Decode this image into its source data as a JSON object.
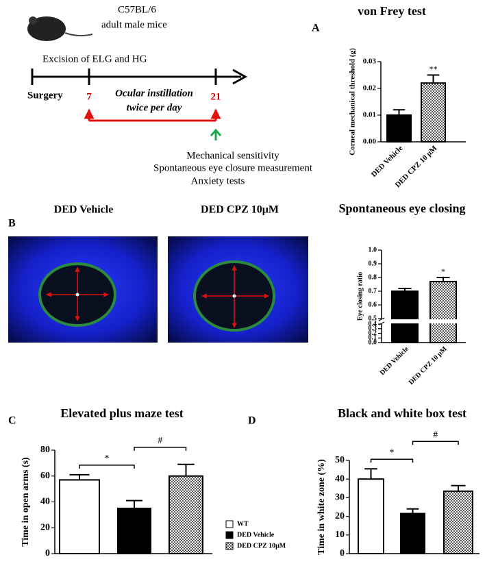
{
  "timeline": {
    "strain": "C57BL/6",
    "subject": "adult male mice",
    "procedure": "Excision of ELG and HG",
    "start": "Surgery",
    "days": [
      "7",
      "21"
    ],
    "treatment": [
      "Ocular instillation",
      "twice per day"
    ],
    "tests": [
      "Mechanical sensitivity",
      "Spontaneous eye closure measurement",
      "Anxiety tests"
    ]
  },
  "photos": {
    "panel": "B",
    "titles": [
      "DED Vehicle",
      "DED CPZ 10μM"
    ]
  },
  "chart_data": [
    {
      "type": "bar",
      "panel": "A",
      "title": "von Frey test",
      "y_label": "Corneal mechanical threshold (g)",
      "categories": [
        "DED Vehicle",
        "DED CPZ 10 μM"
      ],
      "values": [
        0.01,
        0.022
      ],
      "errors": [
        0.002,
        0.003
      ],
      "colors": [
        "#000000",
        "checker"
      ],
      "ylim": [
        0,
        0.03
      ],
      "yticks": [
        {
          "value": 0,
          "label": "0.00"
        },
        0.01,
        0.02,
        0.03
      ],
      "annotations": [
        {
          "bar": 1,
          "text": "**"
        }
      ]
    },
    {
      "type": "bar",
      "title": "Spontaneous eye closing",
      "y_label": "Eye closing ratio",
      "categories": [
        "DED Vehicle",
        "DED CPZ 10 μM"
      ],
      "values": [
        0.7,
        0.77
      ],
      "errors": [
        0.02,
        0.03
      ],
      "colors": [
        "#000000",
        "checker"
      ],
      "ylim": [
        0,
        1
      ],
      "axis_break": [
        0.4,
        0.5
      ],
      "yticks": [
        {
          "value": 0,
          "label": "0.0"
        },
        0.1,
        0.2,
        0.3,
        0.4,
        0.5,
        0.6,
        0.7,
        0.8,
        0.9,
        {
          "value": 1,
          "label": "1.0"
        }
      ],
      "annotations": [
        {
          "bar": 1,
          "text": "*"
        }
      ]
    },
    {
      "type": "bar",
      "panel": "C",
      "title": "Elevated plus maze test",
      "y_label": "Time in open arms (s)",
      "series": [
        {
          "name": "WT",
          "color": "#ffffff",
          "values": [
            57
          ],
          "errors": [
            4
          ]
        },
        {
          "name": "DED Vehicle",
          "color": "#000000",
          "values": [
            35
          ],
          "errors": [
            6
          ]
        },
        {
          "name": "DED CPZ 10μM",
          "color": "checker",
          "values": [
            60
          ],
          "errors": [
            9
          ]
        }
      ],
      "ylim": [
        0,
        80
      ],
      "yticks": [
        0,
        20,
        40,
        60,
        80
      ],
      "brackets": [
        {
          "text": "*",
          "from": 0,
          "to": 1
        },
        {
          "text": "#",
          "from": 1,
          "to": 2
        }
      ]
    },
    {
      "type": "bar",
      "panel": "D",
      "title": "Black and white box test",
      "y_label": "Time in white zone (%)",
      "values": [
        40,
        21.5,
        33.5
      ],
      "errors": [
        5.5,
        2.5,
        3
      ],
      "colors": [
        "#ffffff",
        "#000000",
        "checker"
      ],
      "ylim": [
        0,
        50
      ],
      "yticks": [
        0,
        10,
        20,
        30,
        40,
        50
      ],
      "brackets": [
        {
          "text": "*",
          "from": 0,
          "to": 1
        },
        {
          "text": "#",
          "from": 1,
          "to": 2
        }
      ]
    }
  ]
}
